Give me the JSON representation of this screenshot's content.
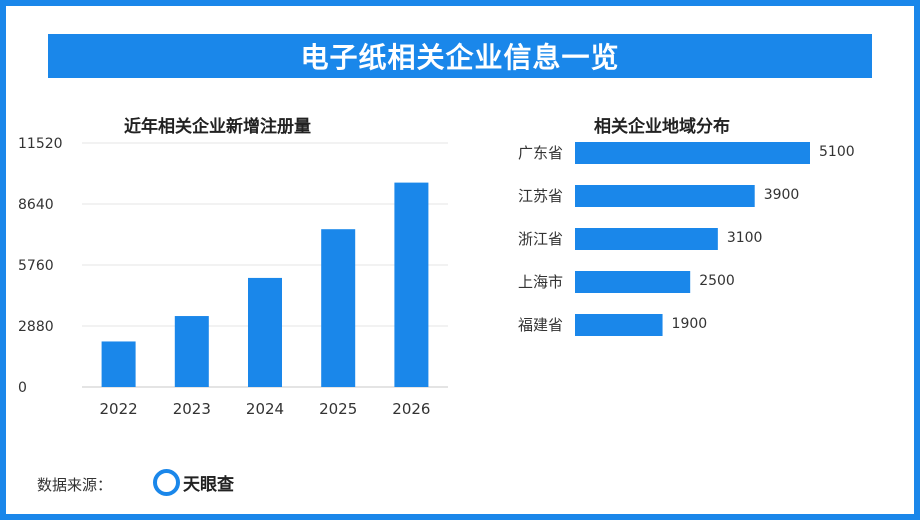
{
  "title": "电子纸相关企业信息一览",
  "footer": {
    "source_label": "数据来源：",
    "source_name": "天眼查"
  },
  "colors": {
    "accent": "#1a87ea",
    "bar": "#1a87ea",
    "grid": "#e6e6e6"
  },
  "chart_data": [
    {
      "type": "bar",
      "title": "近年相关企业新增注册量",
      "categories": [
        "2022",
        "2023",
        "2024",
        "2025",
        "2026"
      ],
      "values": [
        2150,
        3350,
        5150,
        7450,
        9650
      ],
      "ylim": [
        0,
        11520
      ],
      "yticks": [
        0,
        2880,
        5760,
        8640,
        11520
      ],
      "grid": true
    },
    {
      "type": "bar",
      "orientation": "horizontal",
      "title": "相关企业地域分布",
      "categories": [
        "广东省",
        "江苏省",
        "浙江省",
        "上海市",
        "福建省"
      ],
      "values": [
        5100,
        3900,
        3100,
        2500,
        1900
      ],
      "data_labels": true
    }
  ]
}
